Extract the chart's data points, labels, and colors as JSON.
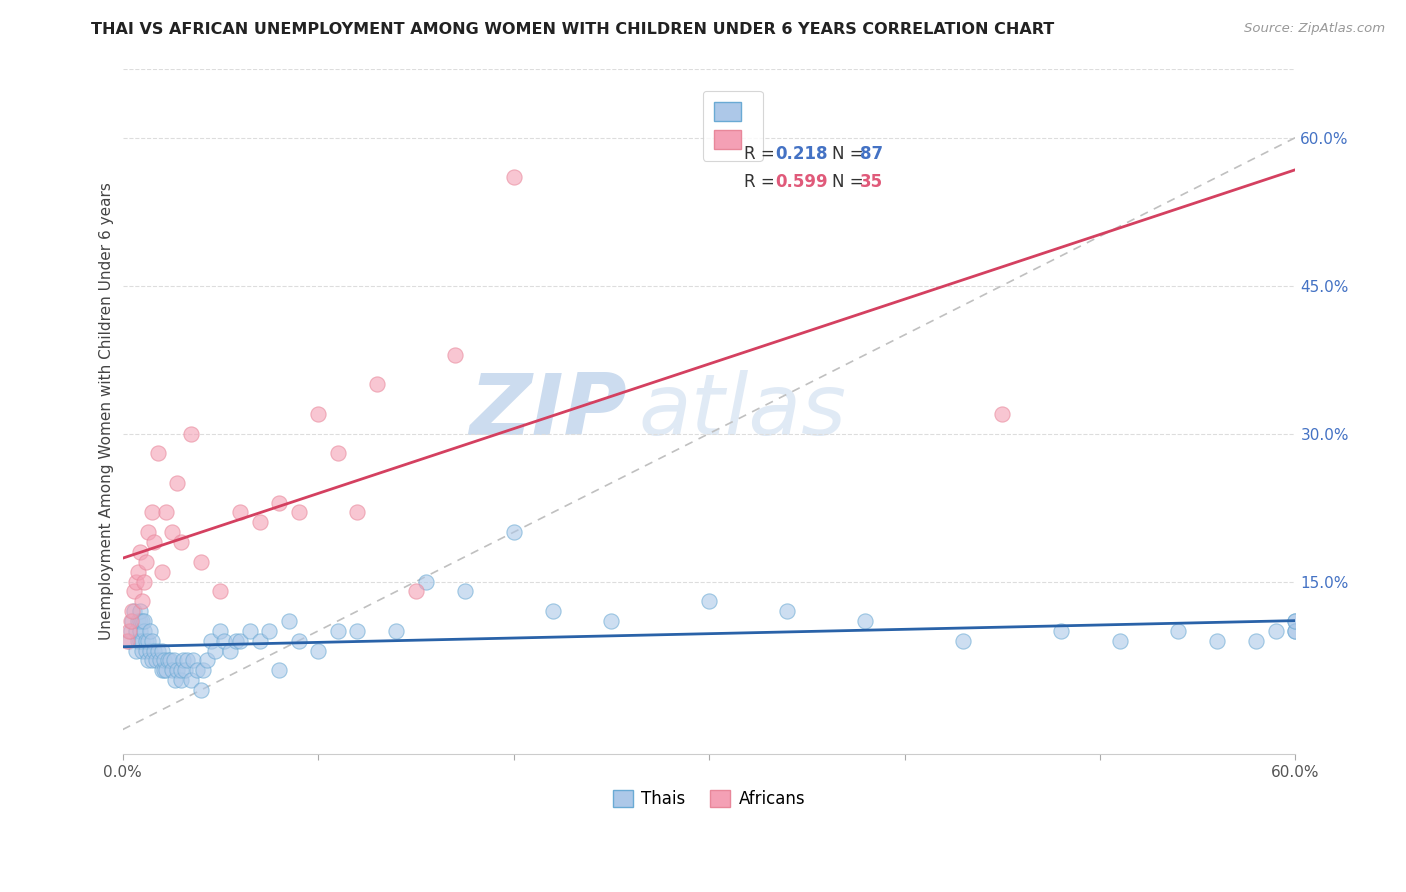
{
  "title": "THAI VS AFRICAN UNEMPLOYMENT AMONG WOMEN WITH CHILDREN UNDER 6 YEARS CORRELATION CHART",
  "source": "Source: ZipAtlas.com",
  "ylabel": "Unemployment Among Women with Children Under 6 years",
  "xlim": [
    0.0,
    0.6
  ],
  "ylim": [
    -0.025,
    0.67
  ],
  "yticks_right": [
    0.15,
    0.3,
    0.45,
    0.6
  ],
  "ytick_labels_right": [
    "15.0%",
    "30.0%",
    "45.0%",
    "60.0%"
  ],
  "xticks": [
    0.0,
    0.1,
    0.2,
    0.3,
    0.4,
    0.5,
    0.6
  ],
  "xtick_labels": [
    "0.0%",
    "",
    "",
    "",
    "",
    "",
    "60.0%"
  ],
  "thai_color": "#adc8e8",
  "african_color": "#f4a0b5",
  "thai_edge_color": "#6aaad4",
  "african_edge_color": "#e8879a",
  "thai_line_color": "#2962a8",
  "african_line_color": "#d44060",
  "diag_color": "#c0c0c0",
  "watermark_zip": "ZIP",
  "watermark_atlas": "atlas",
  "watermark_color": "#dce8f5",
  "legend_border_color": "#cccccc",
  "r_color": "#4472c4",
  "r_color_african": "#e05a7a",
  "thai_x": [
    0.003,
    0.004,
    0.005,
    0.006,
    0.007,
    0.007,
    0.008,
    0.008,
    0.009,
    0.009,
    0.009,
    0.009,
    0.01,
    0.01,
    0.01,
    0.011,
    0.011,
    0.012,
    0.012,
    0.013,
    0.013,
    0.014,
    0.014,
    0.015,
    0.015,
    0.016,
    0.017,
    0.018,
    0.019,
    0.02,
    0.02,
    0.021,
    0.021,
    0.022,
    0.023,
    0.024,
    0.025,
    0.026,
    0.027,
    0.028,
    0.03,
    0.03,
    0.031,
    0.032,
    0.033,
    0.035,
    0.036,
    0.038,
    0.04,
    0.041,
    0.043,
    0.045,
    0.047,
    0.05,
    0.052,
    0.055,
    0.058,
    0.06,
    0.065,
    0.07,
    0.075,
    0.08,
    0.085,
    0.09,
    0.1,
    0.11,
    0.12,
    0.14,
    0.155,
    0.175,
    0.2,
    0.22,
    0.25,
    0.3,
    0.34,
    0.38,
    0.43,
    0.48,
    0.51,
    0.54,
    0.56,
    0.58,
    0.59,
    0.6,
    0.6,
    0.6,
    0.6
  ],
  "thai_y": [
    0.09,
    0.1,
    0.11,
    0.12,
    0.08,
    0.1,
    0.09,
    0.11,
    0.09,
    0.1,
    0.11,
    0.12,
    0.08,
    0.09,
    0.11,
    0.1,
    0.11,
    0.08,
    0.09,
    0.07,
    0.09,
    0.08,
    0.1,
    0.07,
    0.09,
    0.08,
    0.07,
    0.08,
    0.07,
    0.06,
    0.08,
    0.06,
    0.07,
    0.06,
    0.07,
    0.07,
    0.06,
    0.07,
    0.05,
    0.06,
    0.05,
    0.06,
    0.07,
    0.06,
    0.07,
    0.05,
    0.07,
    0.06,
    0.04,
    0.06,
    0.07,
    0.09,
    0.08,
    0.1,
    0.09,
    0.08,
    0.09,
    0.09,
    0.1,
    0.09,
    0.1,
    0.06,
    0.11,
    0.09,
    0.08,
    0.1,
    0.1,
    0.1,
    0.15,
    0.14,
    0.2,
    0.12,
    0.11,
    0.13,
    0.12,
    0.11,
    0.09,
    0.1,
    0.09,
    0.1,
    0.09,
    0.09,
    0.1,
    0.1,
    0.11,
    0.1,
    0.11
  ],
  "african_x": [
    0.002,
    0.003,
    0.004,
    0.005,
    0.006,
    0.007,
    0.008,
    0.009,
    0.01,
    0.011,
    0.012,
    0.013,
    0.015,
    0.016,
    0.018,
    0.02,
    0.022,
    0.025,
    0.028,
    0.03,
    0.035,
    0.04,
    0.05,
    0.06,
    0.07,
    0.08,
    0.09,
    0.1,
    0.11,
    0.12,
    0.13,
    0.15,
    0.17,
    0.2,
    0.45
  ],
  "african_y": [
    0.09,
    0.1,
    0.11,
    0.12,
    0.14,
    0.15,
    0.16,
    0.18,
    0.13,
    0.15,
    0.17,
    0.2,
    0.22,
    0.19,
    0.28,
    0.16,
    0.22,
    0.2,
    0.25,
    0.19,
    0.3,
    0.17,
    0.14,
    0.22,
    0.21,
    0.23,
    0.22,
    0.32,
    0.28,
    0.22,
    0.35,
    0.14,
    0.38,
    0.56,
    0.32
  ]
}
